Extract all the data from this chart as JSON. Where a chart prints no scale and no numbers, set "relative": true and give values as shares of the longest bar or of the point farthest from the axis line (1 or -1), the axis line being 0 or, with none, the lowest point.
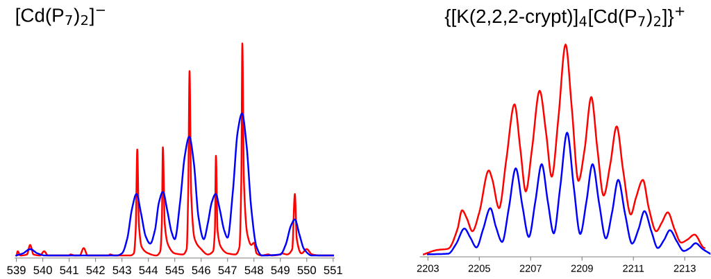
{
  "chart_data": [
    {
      "type": "line",
      "title": "[Cd(P$_{7}$)$_{2}$]$^{−}$",
      "relative": true,
      "xlim": [
        538.95,
        551.05
      ],
      "xticks": [
        539,
        540,
        541,
        542,
        543,
        544,
        545,
        546,
        547,
        548,
        549,
        550,
        551
      ],
      "grid": false,
      "tick_labels": "x",
      "series": [
        {
          "color": "#ff0000",
          "x": [
            539.0,
            539.05,
            539.15,
            539.4,
            539.52,
            539.65,
            539.9,
            540.05,
            540.2,
            541.0,
            541.05,
            541.2,
            541.4,
            541.55,
            541.7,
            542.5,
            542.55,
            542.7,
            543.3,
            543.45,
            543.52,
            543.58,
            543.64,
            543.75,
            544.0,
            544.3,
            544.45,
            544.51,
            544.55,
            544.62,
            544.75,
            545.0,
            545.3,
            545.45,
            545.51,
            545.56,
            545.62,
            545.75,
            546.0,
            546.25,
            546.45,
            546.52,
            546.56,
            546.62,
            546.75,
            547.0,
            547.3,
            547.45,
            547.52,
            547.56,
            547.62,
            547.75,
            547.9,
            548.0,
            548.1,
            548.3,
            548.55,
            548.65,
            549.0,
            549.05,
            549.25,
            549.45,
            549.55,
            549.62,
            549.8,
            550.0,
            550.2,
            550.5,
            551.0
          ],
          "values": [
            0.0,
            0.02,
            0.0,
            0.005,
            0.05,
            0.005,
            0.0,
            0.02,
            0.0,
            0.0,
            0.005,
            0.0,
            0.0,
            0.035,
            0.0,
            0.0,
            0.005,
            0.0,
            0.0,
            0.01,
            0.12,
            0.5,
            0.15,
            0.04,
            0.01,
            0.0,
            0.02,
            0.15,
            0.51,
            0.15,
            0.05,
            0.01,
            0.005,
            0.03,
            0.3,
            0.87,
            0.3,
            0.08,
            0.03,
            0.005,
            0.02,
            0.12,
            0.47,
            0.12,
            0.04,
            0.01,
            0.005,
            0.04,
            0.35,
            1.0,
            0.35,
            0.1,
            0.05,
            0.06,
            0.01,
            0.0,
            0.005,
            0.0,
            0.005,
            0.01,
            0.005,
            0.03,
            0.29,
            0.08,
            0.01,
            0.03,
            0.005,
            0.0,
            0.0
          ]
        },
        {
          "color": "#0000ff",
          "x": [
            539.0,
            539.25,
            539.52,
            539.8,
            540.1,
            542.8,
            543.0,
            543.2,
            543.38,
            543.55,
            543.72,
            543.9,
            544.07,
            544.25,
            544.4,
            544.55,
            544.72,
            544.88,
            545.0,
            545.2,
            545.38,
            545.55,
            545.72,
            545.9,
            546.1,
            546.25,
            546.4,
            546.55,
            546.7,
            546.87,
            547.0,
            547.2,
            547.38,
            547.55,
            547.72,
            547.9,
            548.1,
            548.3,
            549.0,
            549.2,
            549.4,
            549.55,
            549.72,
            549.9,
            550.2,
            551.0
          ],
          "values": [
            0.0,
            0.01,
            0.03,
            0.01,
            0.0,
            0.0,
            0.01,
            0.08,
            0.22,
            0.29,
            0.2,
            0.09,
            0.056,
            0.12,
            0.25,
            0.3,
            0.21,
            0.11,
            0.077,
            0.25,
            0.47,
            0.56,
            0.44,
            0.18,
            0.077,
            0.15,
            0.25,
            0.29,
            0.22,
            0.12,
            0.084,
            0.3,
            0.58,
            0.67,
            0.52,
            0.22,
            0.04,
            0.0,
            0.005,
            0.05,
            0.14,
            0.17,
            0.1,
            0.03,
            0.0,
            0.0
          ]
        }
      ]
    },
    {
      "type": "line",
      "title": "{[K(2,2,2-crypt)]$_{4}$[Cd(P$_{7}$)$_{2}$]}$^{+}$",
      "relative": true,
      "xlim": [
        2202.7,
        2214.0
      ],
      "xticks": [
        2203,
        2205,
        2207,
        2209,
        2211,
        2213
      ],
      "grid": false,
      "tick_labels": "x",
      "series": [
        {
          "color": "#ff0000",
          "x": [
            2202.84,
            2203.33,
            2203.79,
            2204.15,
            2204.33,
            2204.52,
            2204.73,
            2205.0,
            2205.37,
            2205.5,
            2205.77,
            2206.05,
            2206.37,
            2206.6,
            2206.81,
            2207.05,
            2207.35,
            2207.6,
            2207.82,
            2208.08,
            2208.36,
            2208.6,
            2208.86,
            2209.1,
            2209.36,
            2209.6,
            2209.84,
            2210.1,
            2210.35,
            2210.6,
            2210.9,
            2211.1,
            2211.37,
            2211.6,
            2211.89,
            2212.1,
            2212.34,
            2212.6,
            2212.86,
            2213.1,
            2213.38,
            2213.77
          ],
          "values": [
            0.0,
            0.02,
            0.027,
            0.12,
            0.21,
            0.17,
            0.11,
            0.2,
            0.4,
            0.36,
            0.22,
            0.45,
            0.715,
            0.5,
            0.3,
            0.5,
            0.78,
            0.58,
            0.37,
            0.65,
            1.0,
            0.7,
            0.35,
            0.5,
            0.75,
            0.5,
            0.28,
            0.43,
            0.61,
            0.4,
            0.19,
            0.27,
            0.355,
            0.22,
            0.11,
            0.15,
            0.2,
            0.12,
            0.056,
            0.07,
            0.094,
            0.03
          ]
        },
        {
          "color": "#0000ff",
          "x": [
            2203.0,
            2203.79,
            2204.1,
            2204.42,
            2204.65,
            2204.89,
            2205.15,
            2205.43,
            2205.65,
            2205.89,
            2206.15,
            2206.42,
            2206.68,
            2206.93,
            2207.18,
            2207.43,
            2207.67,
            2207.9,
            2208.15,
            2208.42,
            2208.68,
            2208.93,
            2209.17,
            2209.41,
            2209.67,
            2209.93,
            2210.17,
            2210.41,
            2210.68,
            2210.95,
            2211.2,
            2211.43,
            2211.7,
            2211.95,
            2212.2,
            2212.42,
            2212.7,
            2212.96,
            2213.2,
            2213.42,
            2213.7,
            2213.99
          ],
          "values": [
            0.0,
            0.003,
            0.05,
            0.123,
            0.08,
            0.033,
            0.12,
            0.22,
            0.13,
            0.059,
            0.22,
            0.41,
            0.23,
            0.083,
            0.25,
            0.43,
            0.25,
            0.1,
            0.32,
            0.58,
            0.32,
            0.097,
            0.25,
            0.43,
            0.24,
            0.076,
            0.2,
            0.355,
            0.19,
            0.051,
            0.12,
            0.206,
            0.11,
            0.03,
            0.07,
            0.115,
            0.06,
            0.016,
            0.03,
            0.053,
            0.025,
            0.003
          ]
        }
      ]
    }
  ]
}
